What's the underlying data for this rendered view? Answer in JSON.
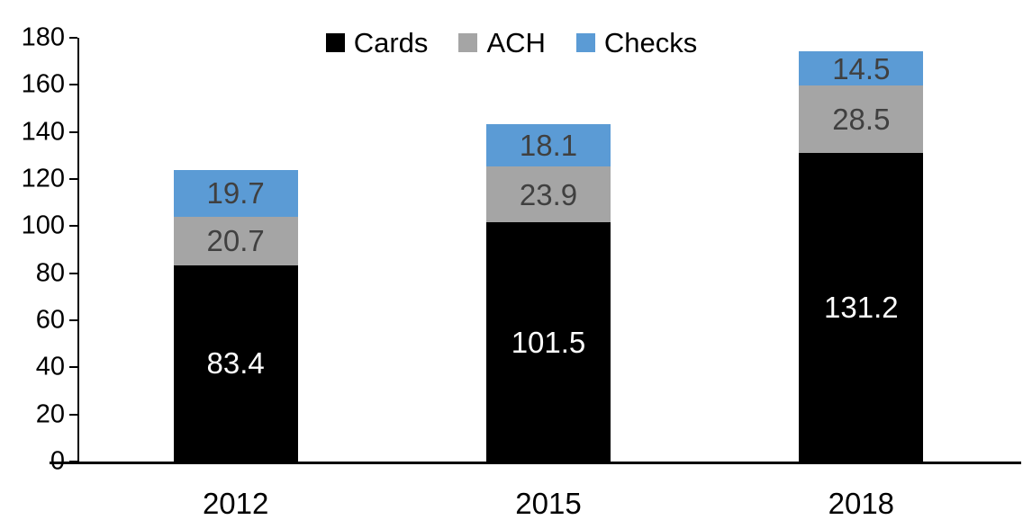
{
  "chart_data": {
    "type": "bar",
    "stacked": true,
    "title": "",
    "xlabel": "",
    "ylabel": "",
    "categories": [
      "2012",
      "2015",
      "2018"
    ],
    "series": [
      {
        "name": "Cards",
        "color": "#000000",
        "label_color": "#ffffff",
        "values": [
          83.4,
          101.5,
          131.2
        ]
      },
      {
        "name": "ACH",
        "color": "#A5A5A5",
        "label_color": "#404040",
        "values": [
          20.7,
          23.9,
          28.5
        ]
      },
      {
        "name": "Checks",
        "color": "#5B9BD5",
        "label_color": "#404040",
        "values": [
          19.7,
          18.1,
          14.5
        ]
      }
    ],
    "totals": [
      123.8,
      143.5,
      174.2
    ],
    "ylim": [
      0,
      180
    ],
    "yticks": [
      0,
      20,
      40,
      60,
      80,
      100,
      120,
      140,
      160,
      180
    ],
    "legend_position": "top",
    "grid": false
  },
  "colors": {
    "axis": "#000000",
    "background": "#ffffff",
    "cards": "#000000",
    "ach": "#A5A5A5",
    "checks": "#5B9BD5"
  }
}
